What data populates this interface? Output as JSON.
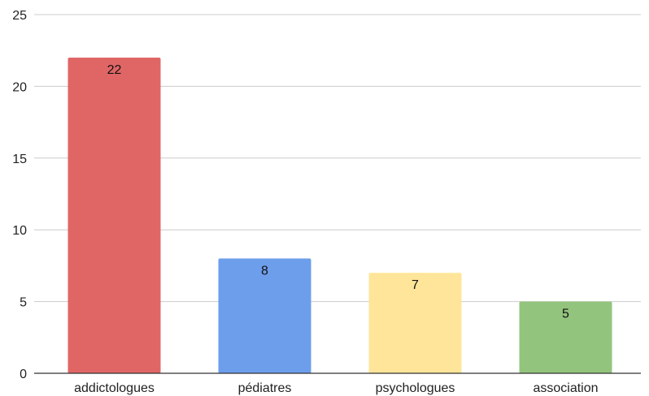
{
  "chart_data": {
    "type": "bar",
    "title": "",
    "xlabel": "",
    "ylabel": "",
    "categories": [
      "addictologues",
      "pédiatres",
      "psychologues",
      "association"
    ],
    "values": [
      22,
      8,
      7,
      5
    ],
    "colors": [
      "#e06666",
      "#6d9eeb",
      "#ffe599",
      "#93c47d"
    ],
    "ylim": [
      0,
      25
    ],
    "yticks": [
      0,
      5,
      10,
      15,
      20,
      25
    ],
    "grid": true,
    "legend": "none",
    "data_labels": true
  }
}
